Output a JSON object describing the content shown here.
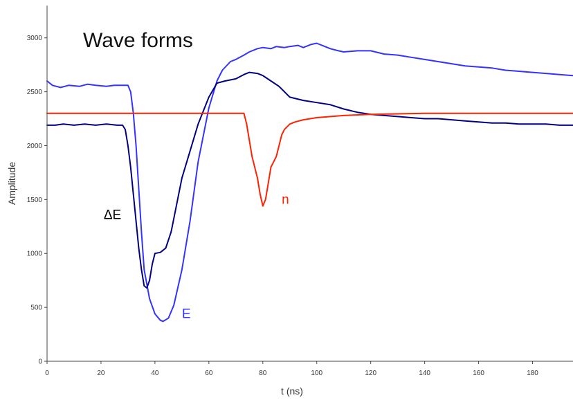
{
  "chart_data": {
    "type": "line",
    "title": "Wave forms",
    "xlabel": "t (ns)",
    "ylabel": "Amplitude",
    "xlim": [
      0,
      195
    ],
    "ylim": [
      0,
      3300
    ],
    "x_ticks": [
      "0",
      "20",
      "40",
      "60",
      "80",
      "100",
      "120",
      "140",
      "160",
      "180"
    ],
    "y_ticks": [
      "0",
      "500",
      "1000",
      "1500",
      "2000",
      "2500",
      "3000"
    ],
    "grid": false,
    "legend": "none",
    "series": [
      {
        "name": "E",
        "color": "#3333ff",
        "x": [
          0,
          2,
          5,
          8,
          12,
          15,
          18,
          22,
          25,
          28,
          30,
          31,
          32,
          33,
          34,
          35,
          36,
          38,
          40,
          42,
          43,
          45,
          47,
          50,
          53,
          56,
          60,
          63,
          65,
          68,
          70,
          73,
          75,
          78,
          80,
          83,
          85,
          88,
          90,
          93,
          95,
          98,
          100,
          103,
          105,
          108,
          110,
          115,
          120,
          125,
          130,
          135,
          140,
          145,
          150,
          155,
          160,
          165,
          170,
          175,
          180,
          185,
          190,
          195
        ],
        "y": [
          2600,
          2560,
          2540,
          2560,
          2550,
          2570,
          2560,
          2550,
          2560,
          2560,
          2560,
          2500,
          2300,
          2000,
          1600,
          1200,
          850,
          580,
          440,
          380,
          370,
          400,
          520,
          850,
          1300,
          1850,
          2350,
          2600,
          2700,
          2780,
          2800,
          2840,
          2870,
          2900,
          2910,
          2900,
          2920,
          2910,
          2920,
          2930,
          2910,
          2940,
          2950,
          2920,
          2900,
          2880,
          2870,
          2880,
          2880,
          2850,
          2840,
          2820,
          2800,
          2780,
          2760,
          2740,
          2730,
          2720,
          2700,
          2690,
          2680,
          2670,
          2660,
          2650
        ]
      },
      {
        "name": "ΔE",
        "color": "#000080",
        "x": [
          0,
          3,
          6,
          10,
          14,
          18,
          22,
          26,
          28,
          29,
          30,
          31,
          32,
          33,
          34,
          35,
          36,
          37,
          38,
          39,
          40,
          42,
          44,
          46,
          48,
          50,
          53,
          56,
          60,
          63,
          66,
          70,
          73,
          75,
          78,
          80,
          83,
          86,
          90,
          95,
          100,
          105,
          110,
          115,
          120,
          125,
          130,
          135,
          140,
          145,
          150,
          155,
          160,
          165,
          170,
          175,
          180,
          185,
          190,
          195
        ],
        "y": [
          2190,
          2190,
          2200,
          2190,
          2200,
          2190,
          2200,
          2190,
          2190,
          2150,
          2000,
          1800,
          1550,
          1300,
          1050,
          850,
          700,
          680,
          750,
          900,
          1000,
          1010,
          1050,
          1200,
          1450,
          1700,
          1950,
          2200,
          2450,
          2580,
          2600,
          2620,
          2660,
          2680,
          2670,
          2650,
          2600,
          2550,
          2450,
          2420,
          2400,
          2380,
          2340,
          2310,
          2290,
          2280,
          2270,
          2260,
          2250,
          2250,
          2240,
          2230,
          2220,
          2210,
          2210,
          2200,
          2200,
          2200,
          2190,
          2190
        ]
      },
      {
        "name": "n",
        "color": "#ff2200",
        "x": [
          0,
          10,
          20,
          30,
          40,
          50,
          60,
          70,
          73,
          74,
          75,
          76,
          77,
          78,
          79,
          80,
          81,
          82,
          83,
          84,
          85,
          86,
          87,
          88,
          90,
          92,
          95,
          100,
          110,
          120,
          130,
          140,
          150,
          160,
          170,
          180,
          190,
          195
        ],
        "y": [
          2300,
          2300,
          2300,
          2300,
          2300,
          2300,
          2300,
          2300,
          2300,
          2200,
          2050,
          1900,
          1800,
          1700,
          1550,
          1440,
          1500,
          1650,
          1800,
          1850,
          1900,
          2000,
          2100,
          2150,
          2200,
          2220,
          2240,
          2260,
          2280,
          2290,
          2295,
          2300,
          2300,
          2300,
          2300,
          2300,
          2300,
          2300
        ]
      }
    ],
    "annotations": [
      {
        "text": "ΔE",
        "x": 21,
        "y": 1320,
        "color": "#000000"
      },
      {
        "text": "n",
        "x": 87,
        "y": 1460,
        "color": "#ff2200"
      },
      {
        "text": "E",
        "x": 50,
        "y": 400,
        "color": "#3333ff"
      }
    ]
  }
}
